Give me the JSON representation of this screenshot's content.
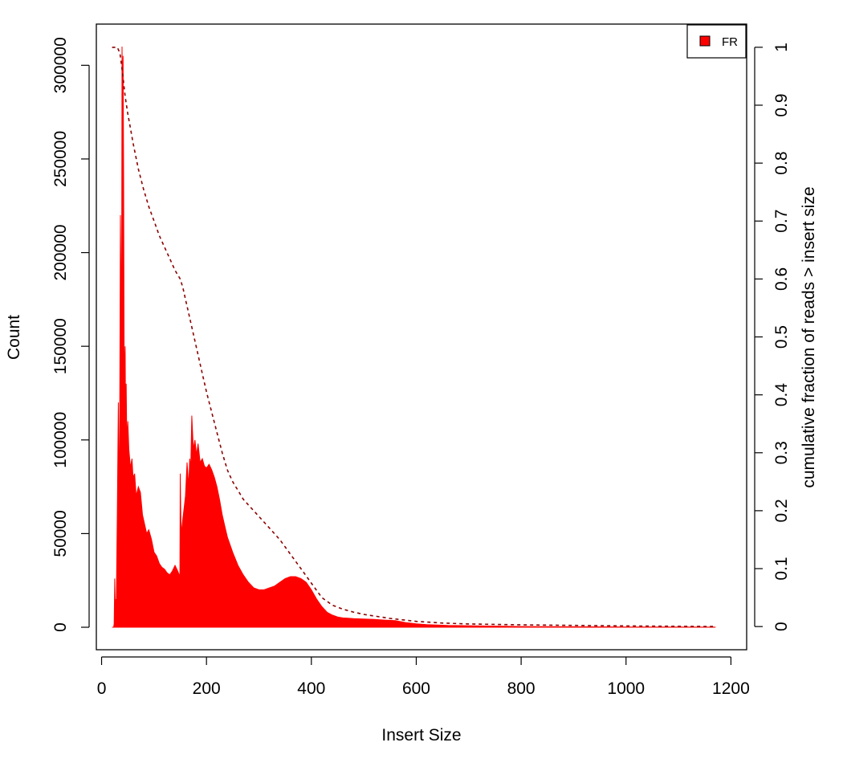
{
  "chart_data": {
    "type": "area",
    "xlabel": "Insert Size",
    "ylabel": "Count",
    "y2label": "cumulative fraction of reads > insert size",
    "xlim": [
      -10,
      1230
    ],
    "ylim": [
      -12000,
      322000
    ],
    "y2lim": [
      -0.04,
      1.04
    ],
    "x_ticks": [
      0,
      200,
      400,
      600,
      800,
      1000,
      1200
    ],
    "y_ticks": [
      0,
      50000,
      100000,
      150000,
      200000,
      250000,
      300000
    ],
    "y2_ticks": [
      0,
      0.1,
      0.2,
      0.3,
      0.4,
      0.5,
      0.6,
      0.7,
      0.8,
      0.9,
      1
    ],
    "grid": false,
    "legend": {
      "position": "top-right",
      "entries": [
        {
          "label": "FR",
          "color": "#ff0000"
        }
      ]
    },
    "series": [
      {
        "name": "FR",
        "kind": "histogram",
        "color": "#ff0000",
        "x": [
          20,
          23,
          24,
          25,
          26,
          27,
          28,
          30,
          32,
          34,
          36,
          38,
          39,
          40,
          41,
          42,
          43,
          44,
          45,
          46,
          47,
          48,
          50,
          52,
          55,
          58,
          60,
          63,
          66,
          70,
          74,
          78,
          82,
          86,
          90,
          95,
          100,
          105,
          110,
          115,
          120,
          125,
          130,
          135,
          140,
          145,
          148,
          149,
          150,
          151,
          152,
          155,
          158,
          160,
          163,
          166,
          168,
          170,
          172,
          175,
          178,
          181,
          184,
          188,
          192,
          196,
          200,
          205,
          210,
          215,
          220,
          225,
          230,
          235,
          240,
          250,
          260,
          270,
          280,
          290,
          300,
          310,
          320,
          330,
          340,
          350,
          360,
          370,
          380,
          390,
          400,
          410,
          420,
          430,
          440,
          450,
          460,
          470,
          480,
          490,
          500,
          520,
          540,
          560,
          580,
          600,
          620,
          640,
          660,
          700,
          750,
          800,
          900,
          1000,
          1100,
          1170
        ],
        "y": [
          0,
          0,
          2000,
          26000,
          12000,
          15000,
          10000,
          60000,
          120000,
          60000,
          220000,
          150000,
          310000,
          280000,
          305000,
          240000,
          150000,
          130000,
          150000,
          90000,
          130000,
          100000,
          110000,
          95000,
          85000,
          90000,
          80000,
          82000,
          70000,
          75000,
          72000,
          60000,
          55000,
          50000,
          52000,
          47000,
          40000,
          38000,
          34000,
          32000,
          31000,
          29000,
          28000,
          30000,
          33000,
          30000,
          28000,
          5000,
          82000,
          60000,
          50000,
          58000,
          65000,
          70000,
          88000,
          75000,
          90000,
          85000,
          113000,
          95000,
          100000,
          92000,
          98000,
          88000,
          90000,
          86000,
          85000,
          87000,
          84000,
          80000,
          75000,
          68000,
          60000,
          54000,
          48000,
          40000,
          33000,
          28000,
          24000,
          21000,
          20000,
          20000,
          21000,
          22000,
          24000,
          26000,
          27000,
          27000,
          26000,
          24000,
          20000,
          15000,
          11000,
          8000,
          6500,
          5500,
          5000,
          4800,
          4600,
          4500,
          4400,
          4200,
          3800,
          3500,
          2500,
          1800,
          1400,
          1200,
          1000,
          800,
          600,
          400,
          250,
          150,
          80,
          30
        ]
      },
      {
        "name": "cumulative fraction of reads > insert size",
        "kind": "cumulative",
        "axis": "right",
        "color": "#8b0000",
        "line": "dashed",
        "x": [
          20,
          30,
          35,
          40,
          45,
          50,
          55,
          60,
          70,
          80,
          90,
          100,
          110,
          120,
          130,
          140,
          150,
          155,
          160,
          170,
          180,
          190,
          200,
          210,
          220,
          230,
          240,
          250,
          260,
          270,
          280,
          290,
          300,
          320,
          340,
          360,
          380,
          400,
          420,
          440,
          460,
          480,
          500,
          550,
          600,
          650,
          700,
          800,
          900,
          1000,
          1100,
          1170
        ],
        "y": [
          1.0,
          1.0,
          0.99,
          0.955,
          0.915,
          0.885,
          0.86,
          0.835,
          0.79,
          0.755,
          0.725,
          0.7,
          0.675,
          0.655,
          0.635,
          0.615,
          0.6,
          0.585,
          0.565,
          0.525,
          0.485,
          0.445,
          0.405,
          0.37,
          0.335,
          0.3,
          0.27,
          0.25,
          0.235,
          0.22,
          0.21,
          0.2,
          0.19,
          0.17,
          0.15,
          0.125,
          0.1,
          0.075,
          0.05,
          0.037,
          0.03,
          0.025,
          0.021,
          0.014,
          0.009,
          0.006,
          0.0045,
          0.003,
          0.002,
          0.001,
          0.0005,
          0.0
        ]
      }
    ]
  }
}
